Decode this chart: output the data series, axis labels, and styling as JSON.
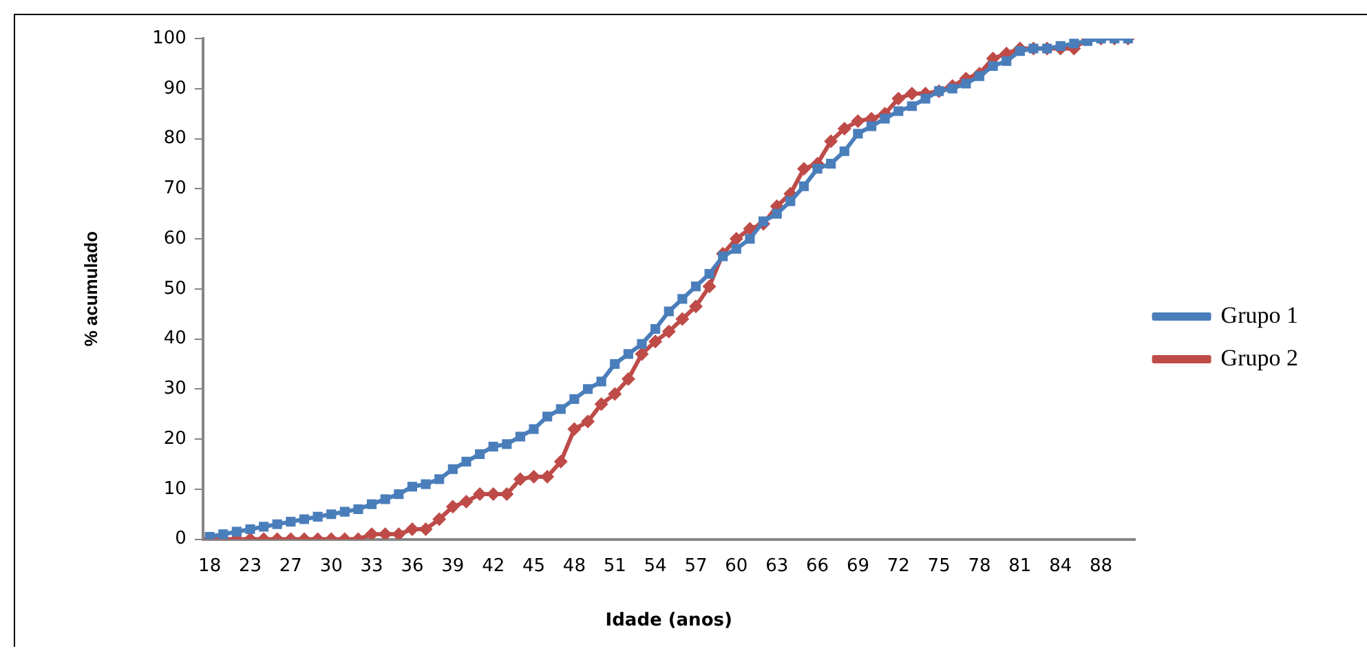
{
  "chart_data": {
    "type": "line",
    "xlabel": "Idade (anos)",
    "ylabel": "% acumulado",
    "categories": [
      "18",
      null,
      null,
      "23",
      null,
      null,
      "27",
      null,
      null,
      "30",
      null,
      null,
      "33",
      null,
      null,
      "36",
      null,
      null,
      "39",
      null,
      null,
      "42",
      null,
      null,
      "45",
      null,
      null,
      "48",
      null,
      null,
      "51",
      null,
      null,
      "54",
      null,
      null,
      "57",
      null,
      null,
      "60",
      null,
      null,
      "63",
      null,
      null,
      "66",
      null,
      null,
      "69",
      null,
      null,
      "72",
      null,
      null,
      "75",
      null,
      null,
      "78",
      null,
      null,
      "81",
      null,
      null,
      "84",
      null,
      null,
      "88",
      null,
      null
    ],
    "series": [
      {
        "name": "Grupo 1",
        "color": "#4a7ebb",
        "marker": "square",
        "values": [
          0.5,
          1,
          1.5,
          2,
          2.5,
          3,
          3.5,
          4,
          4.5,
          5,
          5.5,
          6,
          7,
          8,
          9,
          10.5,
          11,
          12,
          14,
          15.5,
          17,
          18.5,
          19,
          20.5,
          22,
          24.5,
          26,
          28,
          30,
          31.5,
          35,
          37,
          39,
          42,
          45.5,
          48,
          50.5,
          53,
          56.5,
          58,
          60,
          63.5,
          65,
          67.5,
          70.5,
          74,
          75,
          77.5,
          81,
          82.5,
          84,
          85.5,
          86.5,
          88,
          89.5,
          90,
          91,
          92.5,
          94.5,
          95.5,
          97.5,
          98,
          98,
          98.5,
          99,
          99.5,
          100,
          100,
          100
        ]
      },
      {
        "name": "Grupo 2",
        "color": "#be4b48",
        "marker": "diamond",
        "values": [
          0,
          0,
          0,
          0,
          0,
          0,
          0,
          0,
          0,
          0,
          0,
          0,
          1,
          1,
          1,
          2,
          2,
          4,
          6.5,
          7.5,
          9,
          9,
          9,
          12,
          12.5,
          12.5,
          15.5,
          22,
          23.5,
          27,
          29,
          32,
          37,
          39.5,
          41.5,
          44,
          46.5,
          50.5,
          57,
          60,
          62,
          63,
          66.5,
          69,
          74,
          75,
          79.5,
          82,
          83.5,
          84,
          85,
          88,
          89,
          89,
          89.5,
          90.5,
          92,
          93,
          96,
          97,
          98,
          98,
          98,
          98,
          98,
          100,
          100,
          100,
          100
        ]
      }
    ],
    "ylim": [
      0,
      100
    ],
    "yticks": [
      0,
      10,
      20,
      30,
      40,
      50,
      60,
      70,
      80,
      90,
      100
    ],
    "grid": false,
    "legend": "right",
    "line_style": "solid"
  }
}
